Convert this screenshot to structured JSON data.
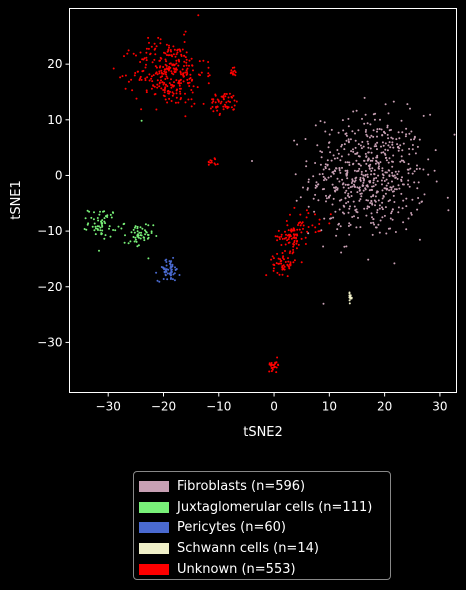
{
  "chart_data": {
    "type": "scatter",
    "title": "",
    "xlabel": "tSNE2",
    "ylabel": "tSNE1",
    "xlim": [
      -37,
      33
    ],
    "ylim": [
      -39,
      30
    ],
    "xticks": [
      -30,
      -20,
      -10,
      0,
      10,
      20,
      30
    ],
    "yticks": [
      -30,
      -20,
      -10,
      0,
      10,
      20
    ],
    "background": "#000000",
    "legend_position": "below",
    "series": [
      {
        "name": "Fibroblasts (n=596)",
        "color": "#c8a0b4",
        "count": 596,
        "clusters": [
          {
            "cx": 17,
            "cy": 0,
            "sx": 5.2,
            "sy": 5.5,
            "n": 596
          }
        ]
      },
      {
        "name": "Juxtaglomerular cells (n=111)",
        "color": "#78f078",
        "count": 111,
        "clusters": [
          {
            "cx": -31,
            "cy": -8.5,
            "sx": 1.3,
            "sy": 1.3,
            "n": 60
          },
          {
            "cx": -24.5,
            "cy": -11,
            "sx": 1.3,
            "sy": 1.3,
            "n": 50
          },
          {
            "cx": -24,
            "cy": 10,
            "sx": 0.1,
            "sy": 0.1,
            "n": 1
          }
        ]
      },
      {
        "name": "Pericytes (n=60)",
        "color": "#4a6ad0",
        "count": 60,
        "clusters": [
          {
            "cx": -19,
            "cy": -17,
            "sx": 1.0,
            "sy": 1.0,
            "n": 60
          }
        ]
      },
      {
        "name": "Schwann cells (n=14)",
        "color": "#f0f0c8",
        "count": 14,
        "clusters": [
          {
            "cx": 13.8,
            "cy": -22,
            "sx": 0.15,
            "sy": 0.4,
            "n": 14
          }
        ]
      },
      {
        "name": "Unknown (n=553)",
        "color": "#ff0000",
        "count": 553,
        "clusters": [
          {
            "cx": -19,
            "cy": 18.5,
            "sx": 3.2,
            "sy": 3.0,
            "n": 300
          },
          {
            "cx": -9,
            "cy": 13,
            "sx": 1.4,
            "sy": 1.0,
            "n": 55
          },
          {
            "cx": -7.5,
            "cy": 18.8,
            "sx": 0.6,
            "sy": 0.5,
            "n": 12
          },
          {
            "cx": -11,
            "cy": 2.6,
            "sx": 0.5,
            "sy": 0.5,
            "n": 12
          },
          {
            "cx": 3,
            "cy": -11,
            "sx": 1.2,
            "sy": 1.3,
            "n": 70
          },
          {
            "cx": 1.8,
            "cy": -16,
            "sx": 1.0,
            "sy": 0.9,
            "n": 50
          },
          {
            "cx": 0,
            "cy": -34,
            "sx": 0.5,
            "sy": 0.5,
            "n": 25
          },
          {
            "cx": 6,
            "cy": -9,
            "sx": 2.2,
            "sy": 1.5,
            "n": 29
          }
        ]
      }
    ]
  }
}
